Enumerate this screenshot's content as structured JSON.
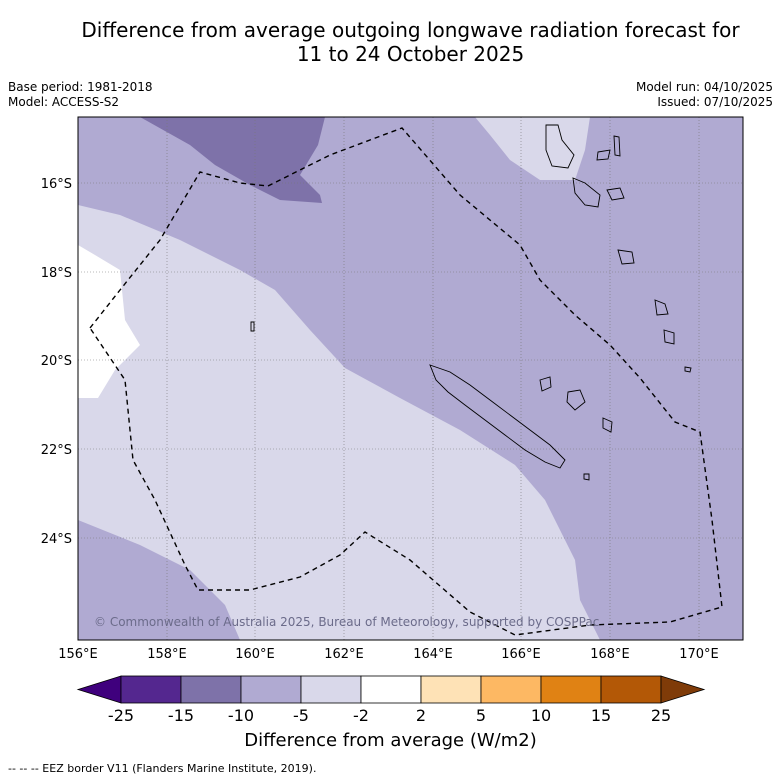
{
  "title_line1": "Difference from average outgoing longwave radiation forecast for",
  "title_line2": "11 to 24 October 2025",
  "base_period": "Base period: 1981-2018",
  "model": "Model: ACCESS-S2",
  "model_run": "Model run: 04/10/2025",
  "issued": "Issued: 07/10/2025",
  "copyright": "© Commonwealth of Australia 2025, Bureau of Meteorology, supported by COSPPac",
  "lat_labels": [
    "16°S",
    "18°S",
    "20°S",
    "22°S",
    "24°S"
  ],
  "lon_labels": [
    "156°E",
    "158°E",
    "160°E",
    "162°E",
    "164°E",
    "166°E",
    "168°E",
    "170°E"
  ],
  "colorbar": {
    "ticks": [
      "-25",
      "-15",
      "-10",
      "-5",
      "-2",
      "2",
      "5",
      "10",
      "15",
      "25"
    ],
    "colors": [
      "#3f007d",
      "#54278f",
      "#7e72a9",
      "#b0aad2",
      "#d9d8ea",
      "#ffffff",
      "#fee2b6",
      "#fdb863",
      "#e08214",
      "#b35806",
      "#7f3b08"
    ],
    "label": "Difference from average (W/m2)"
  },
  "footnote": "--  --  -- EEZ border V11 (Flanders Marine Institute, 2019).",
  "colors": {
    "band_dark": "#7e72a9",
    "band_mid": "#b0aad2",
    "band_light": "#d9d8ea",
    "band_white": "#ffffff"
  }
}
